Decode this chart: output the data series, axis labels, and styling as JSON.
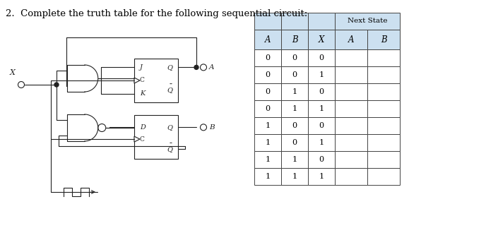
{
  "title": "2.  Complete the truth table for the following sequential circuit:",
  "title_fontsize": 9.5,
  "bg_color": "#ffffff",
  "table_header_bg": "#cce0f0",
  "table_cell_bg": "#ffffff",
  "table_border_color": "#444444",
  "next_state_label": "Next State",
  "col_headers": [
    "A",
    "B",
    "X",
    "A",
    "B"
  ],
  "rows": [
    [
      "0",
      "0",
      "0",
      "",
      ""
    ],
    [
      "0",
      "0",
      "1",
      "",
      ""
    ],
    [
      "0",
      "1",
      "0",
      "",
      ""
    ],
    [
      "0",
      "1",
      "1",
      "",
      ""
    ],
    [
      "1",
      "0",
      "0",
      "",
      ""
    ],
    [
      "1",
      "0",
      "1",
      "",
      ""
    ],
    [
      "1",
      "1",
      "0",
      "",
      ""
    ],
    [
      "1",
      "1",
      "1",
      "",
      ""
    ]
  ]
}
